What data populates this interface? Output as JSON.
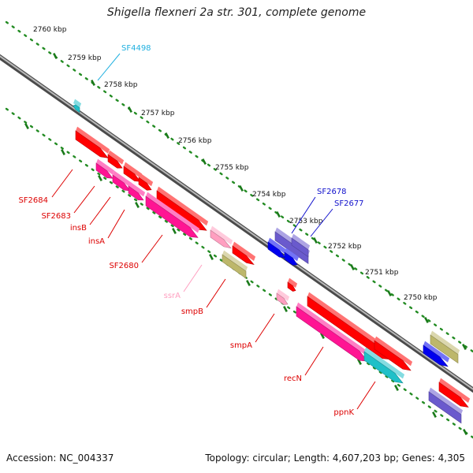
{
  "title": "Shigella flexneri 2a str. 301, complete genome",
  "footer": {
    "accession": "Accession: NC_004337",
    "topology": "Topology: circular; Length: 4,607,203 bp; Genes: 4,305"
  },
  "colors": {
    "background": "#ffffff",
    "backbone": "#8a8a8a",
    "ruler": "#228b22",
    "cds": "#ff0000",
    "is_element": "#ff1493",
    "pseudo": "#bdb76b",
    "trna": "#ff9fc0",
    "blue": "#0000ee",
    "slate": "#6a5acd",
    "cyan": "#20c0c8",
    "label_red": "#dd0000",
    "label_blue": "#1010cc",
    "label_cyan": "#20b0e0",
    "label_pink": "#ff9fc0"
  },
  "scale": {
    "unit": "kbp",
    "ticks": [
      {
        "label": "2760 kbp"
      },
      {
        "label": "2759 kbp"
      },
      {
        "label": "2758 kbp"
      },
      {
        "label": "2757 kbp"
      },
      {
        "label": "2756 kbp"
      },
      {
        "label": "2755 kbp"
      },
      {
        "label": "2754 kbp"
      },
      {
        "label": "2753 kbp"
      },
      {
        "label": "2752 kbp"
      },
      {
        "label": "2751 kbp"
      },
      {
        "label": "2750 kbp"
      }
    ]
  },
  "gene_labels": [
    {
      "id": "SF4498",
      "text": "SF4498",
      "color": "label_cyan"
    },
    {
      "id": "SF2678",
      "text": "SF2678",
      "color": "label_blue"
    },
    {
      "id": "SF2677",
      "text": "SF2677",
      "color": "label_blue"
    },
    {
      "id": "SF2684",
      "text": "SF2684",
      "color": "label_red"
    },
    {
      "id": "SF2683",
      "text": "SF2683",
      "color": "label_red"
    },
    {
      "id": "insB",
      "text": "insB",
      "color": "label_red"
    },
    {
      "id": "insA",
      "text": "insA",
      "color": "label_red"
    },
    {
      "id": "SF2680",
      "text": "SF2680",
      "color": "label_red"
    },
    {
      "id": "ssrA",
      "text": "ssrA",
      "color": "label_pink"
    },
    {
      "id": "smpB",
      "text": "smpB",
      "color": "label_red"
    },
    {
      "id": "smpA",
      "text": "smpA",
      "color": "label_red"
    },
    {
      "id": "recN",
      "text": "recN",
      "color": "label_red"
    },
    {
      "id": "ppnK",
      "text": "ppnK",
      "color": "label_red"
    }
  ],
  "features": [
    {
      "color": "cyan"
    },
    {
      "color": "cds"
    },
    {
      "color": "cds"
    },
    {
      "color": "cds"
    },
    {
      "color": "cds"
    },
    {
      "color": "is_element"
    },
    {
      "color": "is_element"
    },
    {
      "color": "is_element"
    },
    {
      "color": "cds"
    },
    {
      "color": "is_element"
    },
    {
      "color": "trna"
    },
    {
      "color": "cds"
    },
    {
      "color": "pseudo"
    },
    {
      "color": "slate"
    },
    {
      "color": "blue"
    },
    {
      "color": "blue"
    },
    {
      "color": "slate"
    },
    {
      "color": "cds"
    },
    {
      "color": "trna"
    },
    {
      "color": "cds"
    },
    {
      "color": "is_element"
    },
    {
      "color": "cds"
    },
    {
      "color": "cyan"
    },
    {
      "color": "pseudo"
    },
    {
      "color": "blue"
    },
    {
      "color": "cds"
    },
    {
      "color": "slate"
    }
  ]
}
